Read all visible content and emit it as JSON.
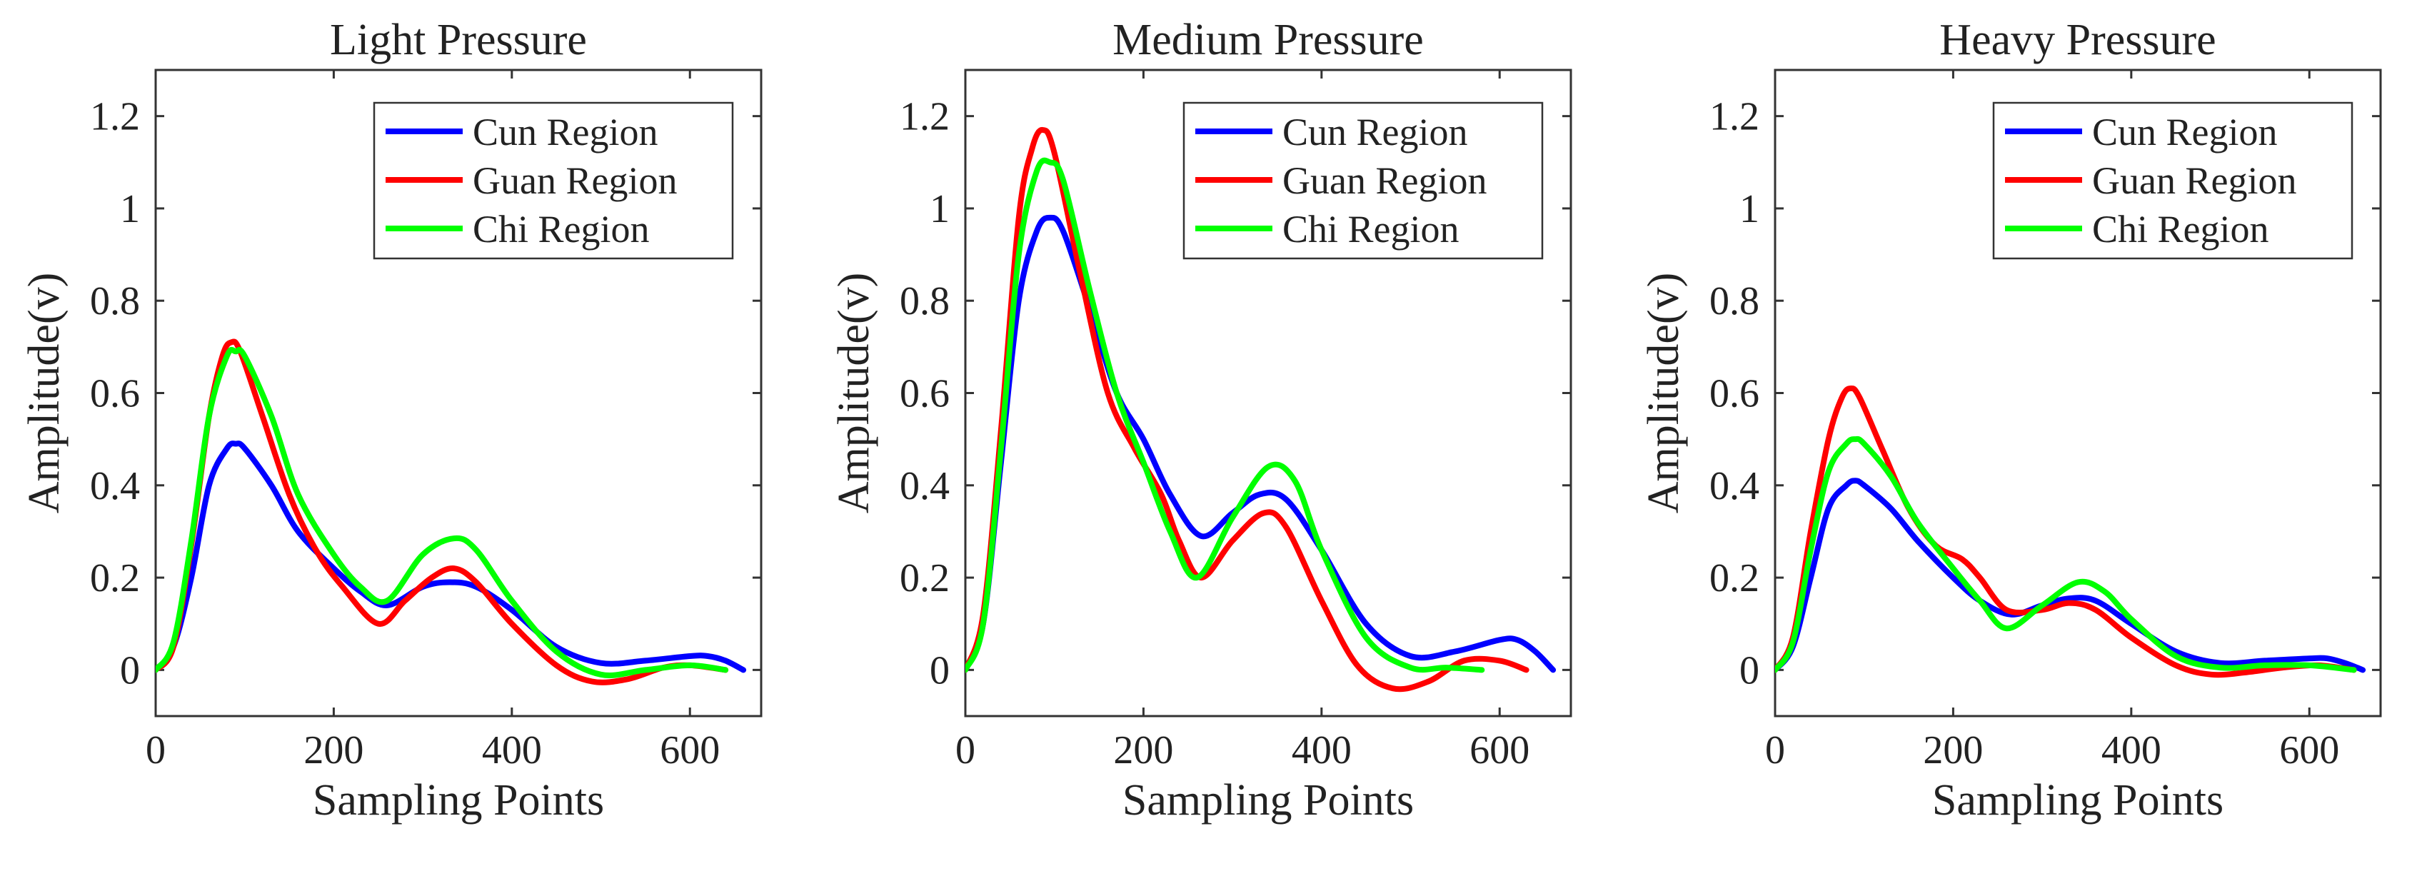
{
  "figure": {
    "colors": {
      "cun": "#0000ff",
      "guan": "#ff0000",
      "chi": "#00ff00",
      "axis": "#333333",
      "background": "#ffffff"
    }
  },
  "chart_data": [
    {
      "type": "line",
      "title": "Light Pressure",
      "xlabel": "Sampling Points",
      "ylabel": "Amplitude(v)",
      "xlim": [
        0,
        680
      ],
      "ylim": [
        -0.1,
        1.3
      ],
      "xticks": [
        0,
        200,
        400,
        600
      ],
      "yticks": [
        0,
        0.2,
        0.4,
        0.6,
        0.8,
        1,
        1.2
      ],
      "xtick_labels": [
        "0",
        "200",
        "400",
        "600"
      ],
      "ytick_labels": [
        "0",
        "0.2",
        "0.4",
        "0.6",
        "0.8",
        "1",
        "1.2"
      ],
      "legend_position": "top-right",
      "grid": false,
      "series": [
        {
          "name": "Cun Region",
          "color": "#0000ff",
          "x": [
            0,
            20,
            40,
            60,
            80,
            90,
            100,
            130,
            160,
            200,
            230,
            260,
            300,
            330,
            360,
            400,
            450,
            500,
            550,
            600,
            620,
            640,
            660
          ],
          "y": [
            0,
            0.05,
            0.2,
            0.4,
            0.48,
            0.49,
            0.48,
            0.4,
            0.3,
            0.22,
            0.17,
            0.14,
            0.18,
            0.19,
            0.18,
            0.13,
            0.05,
            0.015,
            0.02,
            0.03,
            0.03,
            0.02,
            0
          ]
        },
        {
          "name": "Guan Region",
          "color": "#ff0000",
          "x": [
            0,
            20,
            40,
            60,
            75,
            85,
            95,
            120,
            150,
            180,
            210,
            250,
            280,
            310,
            335,
            360,
            400,
            450,
            490,
            530,
            570,
            600,
            640
          ],
          "y": [
            0,
            0.05,
            0.27,
            0.55,
            0.68,
            0.71,
            0.69,
            0.55,
            0.38,
            0.26,
            0.18,
            0.1,
            0.15,
            0.2,
            0.22,
            0.19,
            0.1,
            0.01,
            -0.025,
            -0.02,
            0.005,
            0.01,
            0
          ]
        },
        {
          "name": "Chi Region",
          "color": "#00ff00",
          "x": [
            0,
            20,
            40,
            60,
            80,
            90,
            100,
            130,
            160,
            200,
            230,
            260,
            300,
            335,
            360,
            400,
            450,
            500,
            550,
            600,
            640
          ],
          "y": [
            0,
            0.06,
            0.28,
            0.55,
            0.68,
            0.69,
            0.68,
            0.55,
            0.38,
            0.25,
            0.18,
            0.15,
            0.25,
            0.285,
            0.26,
            0.15,
            0.04,
            -0.01,
            0,
            0.01,
            0
          ]
        }
      ]
    },
    {
      "type": "line",
      "title": "Medium Pressure",
      "xlabel": "Sampling Points",
      "ylabel": "Amplitude(v)",
      "xlim": [
        0,
        680
      ],
      "ylim": [
        -0.1,
        1.3
      ],
      "xticks": [
        0,
        200,
        400,
        600
      ],
      "yticks": [
        0,
        0.2,
        0.4,
        0.6,
        0.8,
        1,
        1.2
      ],
      "xtick_labels": [
        "0",
        "200",
        "400",
        "600"
      ],
      "ytick_labels": [
        "0",
        "0.2",
        "0.4",
        "0.6",
        "0.8",
        "1",
        "1.2"
      ],
      "legend_position": "top-right",
      "grid": false,
      "series": [
        {
          "name": "Cun Region",
          "color": "#0000ff",
          "x": [
            0,
            20,
            40,
            60,
            80,
            95,
            110,
            140,
            170,
            200,
            230,
            265,
            300,
            330,
            360,
            400,
            450,
            500,
            550,
            600,
            620,
            640,
            660
          ],
          "y": [
            0,
            0.1,
            0.45,
            0.8,
            0.95,
            0.98,
            0.95,
            0.78,
            0.6,
            0.5,
            0.38,
            0.29,
            0.34,
            0.38,
            0.37,
            0.26,
            0.1,
            0.03,
            0.04,
            0.065,
            0.065,
            0.04,
            0
          ]
        },
        {
          "name": "Guan Region",
          "color": "#ff0000",
          "x": [
            0,
            20,
            40,
            60,
            75,
            87,
            100,
            130,
            160,
            190,
            220,
            240,
            265,
            300,
            335,
            360,
            400,
            440,
            480,
            520,
            560,
            600,
            630
          ],
          "y": [
            0,
            0.12,
            0.52,
            0.98,
            1.13,
            1.17,
            1.12,
            0.85,
            0.6,
            0.48,
            0.38,
            0.28,
            0.2,
            0.28,
            0.34,
            0.31,
            0.15,
            0.01,
            -0.04,
            -0.025,
            0.02,
            0.02,
            0
          ]
        },
        {
          "name": "Chi Region",
          "color": "#00ff00",
          "x": [
            0,
            20,
            40,
            60,
            80,
            95,
            110,
            140,
            170,
            200,
            230,
            260,
            300,
            340,
            370,
            400,
            450,
            500,
            540,
            580
          ],
          "y": [
            0,
            0.1,
            0.48,
            0.9,
            1.08,
            1.1,
            1.06,
            0.82,
            0.6,
            0.45,
            0.3,
            0.2,
            0.33,
            0.44,
            0.41,
            0.26,
            0.07,
            0.005,
            0.005,
            0
          ]
        }
      ]
    },
    {
      "type": "line",
      "title": "Heavy Pressure",
      "xlabel": "Sampling Points",
      "ylabel": "Amplitude(v)",
      "xlim": [
        0,
        680
      ],
      "ylim": [
        -0.1,
        1.3
      ],
      "xticks": [
        0,
        200,
        400,
        600
      ],
      "yticks": [
        0,
        0.2,
        0.4,
        0.6,
        0.8,
        1,
        1.2
      ],
      "xtick_labels": [
        "0",
        "200",
        "400",
        "600"
      ],
      "ytick_labels": [
        "0",
        "0.2",
        "0.4",
        "0.6",
        "0.8",
        "1",
        "1.2"
      ],
      "legend_position": "top-right",
      "grid": false,
      "series": [
        {
          "name": "Cun Region",
          "color": "#0000ff",
          "x": [
            0,
            20,
            40,
            60,
            80,
            90,
            100,
            130,
            160,
            200,
            230,
            265,
            300,
            330,
            360,
            400,
            450,
            500,
            550,
            600,
            620,
            640,
            660
          ],
          "y": [
            0,
            0.05,
            0.2,
            0.35,
            0.4,
            0.41,
            0.4,
            0.35,
            0.28,
            0.2,
            0.15,
            0.12,
            0.14,
            0.155,
            0.15,
            0.1,
            0.04,
            0.015,
            0.02,
            0.025,
            0.025,
            0.015,
            0
          ]
        },
        {
          "name": "Guan Region",
          "color": "#ff0000",
          "x": [
            0,
            20,
            40,
            60,
            75,
            85,
            95,
            120,
            150,
            180,
            210,
            230,
            260,
            300,
            330,
            360,
            400,
            450,
            490,
            530,
            570,
            610,
            650
          ],
          "y": [
            0,
            0.07,
            0.3,
            0.5,
            0.59,
            0.61,
            0.59,
            0.48,
            0.35,
            0.27,
            0.24,
            0.2,
            0.13,
            0.13,
            0.145,
            0.13,
            0.07,
            0.01,
            -0.01,
            -0.005,
            0.005,
            0.01,
            0
          ]
        },
        {
          "name": "Chi Region",
          "color": "#00ff00",
          "x": [
            0,
            20,
            40,
            60,
            80,
            90,
            100,
            130,
            160,
            200,
            230,
            260,
            300,
            340,
            370,
            400,
            450,
            500,
            550,
            600,
            650
          ],
          "y": [
            0,
            0.06,
            0.26,
            0.43,
            0.49,
            0.5,
            0.49,
            0.42,
            0.32,
            0.22,
            0.15,
            0.09,
            0.14,
            0.19,
            0.17,
            0.11,
            0.03,
            0.005,
            0.01,
            0.01,
            0
          ]
        }
      ]
    }
  ]
}
